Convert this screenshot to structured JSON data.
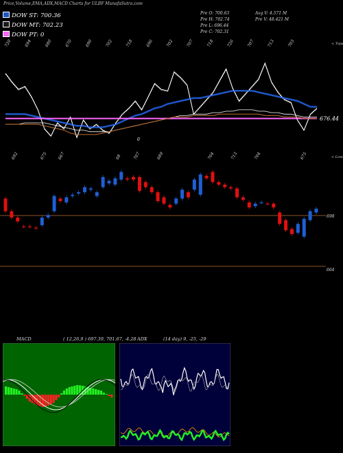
{
  "header": {
    "title": "Price,Volume,EMA,ADX,MACD Charts for ULBF MunafaSutra.com"
  },
  "legend": [
    {
      "label": "DOW ST: 700.36",
      "color": "#1e56c8"
    },
    {
      "label": "DOW MT: 702.23",
      "color": "#1a1a1a"
    },
    {
      "label": "DOW PT: 0",
      "color": "#ff66ff"
    }
  ],
  "ohlc": {
    "open": "Pre  O: 700.63",
    "high": "Pre  H: 702.74",
    "low": "Pre  L: 696.44",
    "close": "Pre  C: 702.31",
    "avg_volume": "Avg V: 4.571 M",
    "prev_volume": "Pre  V: 48.421 M"
  },
  "colors": {
    "up": "#1e5fd6",
    "down": "#e01010",
    "ema_short": "#1e56c8",
    "ema_pt": "#ff66ff",
    "ema_long": "#c07030",
    "grid": "#c07030",
    "macd_bg": "#006400",
    "adx_bg": "#00003a"
  },
  "chart_data": [
    {
      "type": "line",
      "title": "",
      "top_tick_labels": [
        "720",
        "694",
        "680",
        "670",
        "690",
        "702",
        "718",
        "696",
        "702",
        "707",
        "718",
        "726",
        "707",
        "713",
        "703"
      ],
      "bottom_tick_labels": [
        "692",
        "675",
        "667",
        "68",
        "707",
        "689",
        "704",
        "713",
        "704",
        "675"
      ],
      "price_label": "676.44",
      "annotation": "0",
      "corner_label_top": "< Tops",
      "corner_label_bottom": "< Lows",
      "series": [
        {
          "name": "",
          "values": [
            718,
            712,
            707,
            709,
            702,
            693,
            680,
            675,
            684,
            680,
            688,
            674,
            686,
            680,
            683,
            679,
            677,
            684,
            690,
            694,
            699,
            693,
            702,
            711,
            707,
            706,
            719,
            715,
            710,
            690,
            695,
            700,
            705,
            713,
            721,
            708,
            699,
            704,
            709,
            714,
            725,
            712,
            705,
            700,
            698,
            686,
            679,
            690,
            694
          ]
        },
        {
          "name": "DOW ST",
          "values": [
            690,
            690,
            690,
            690,
            689,
            688,
            687,
            686,
            685,
            684,
            683,
            682,
            682,
            681,
            681,
            681,
            682,
            683,
            685,
            687,
            689,
            690,
            692,
            694,
            695,
            697,
            698,
            699,
            700,
            701,
            701,
            702,
            703,
            704,
            705,
            706,
            706,
            706,
            706,
            705,
            704,
            703,
            702,
            701,
            700,
            699,
            697,
            695,
            695
          ]
        },
        {
          "name": "DOW MT",
          "values": [
            683,
            683,
            683,
            684,
            684,
            684,
            684,
            683,
            682,
            681,
            680,
            679,
            679,
            678,
            678,
            678,
            678,
            679,
            680,
            681,
            682,
            683,
            684,
            685,
            686,
            687,
            688,
            689,
            689,
            690,
            690,
            690,
            691,
            691,
            692,
            692,
            693,
            693,
            693,
            692,
            692,
            691,
            691,
            690,
            690,
            689,
            688,
            688,
            688
          ]
        },
        {
          "name": "DOW PT",
          "values": [
            687,
            687,
            687,
            687,
            687,
            687,
            687,
            687,
            687,
            687,
            687,
            687,
            687,
            687,
            687,
            687,
            687,
            687,
            687,
            687,
            687,
            687,
            687,
            687,
            687,
            687,
            687,
            687,
            687,
            687,
            687,
            687,
            687,
            687,
            687,
            687,
            687,
            687,
            687,
            687,
            687,
            687,
            687,
            687,
            687,
            687,
            687,
            687,
            687
          ]
        },
        {
          "name": "",
          "values": [
            683,
            683,
            683,
            683,
            683,
            683,
            682,
            681,
            680,
            679,
            677,
            676,
            676,
            676,
            676,
            677,
            678,
            679,
            680,
            681,
            682,
            683,
            684,
            685,
            686,
            687,
            688,
            688,
            688,
            689,
            689,
            689,
            689,
            690,
            690,
            690,
            690,
            690,
            690,
            690,
            689,
            689,
            689,
            688,
            688,
            688,
            687,
            687,
            687
          ]
        }
      ]
    },
    {
      "type": "bar",
      "title": "",
      "price_labels": [
        "698",
        "664"
      ],
      "candles": [
        {
          "o": 711,
          "c": 701,
          "dir": "down"
        },
        {
          "o": 701,
          "c": 696,
          "dir": "down"
        },
        {
          "o": 696,
          "c": 693,
          "dir": "down"
        },
        {
          "o": 689,
          "c": 689,
          "dir": "down"
        },
        {
          "o": 689,
          "c": 689,
          "dir": "down"
        },
        {
          "o": 688,
          "c": 688,
          "dir": "down"
        },
        {
          "o": 690,
          "c": 696,
          "dir": "up"
        },
        {
          "o": 696,
          "c": 698,
          "dir": "up"
        },
        {
          "o": 701,
          "c": 713,
          "dir": "up"
        },
        {
          "o": 709,
          "c": 711,
          "dir": "down"
        },
        {
          "o": 708,
          "c": 712,
          "dir": "up"
        },
        {
          "o": 713,
          "c": 714,
          "dir": "up"
        },
        {
          "o": 715,
          "c": 716,
          "dir": "up"
        },
        {
          "o": 716,
          "c": 720,
          "dir": "up"
        },
        {
          "o": 718,
          "c": 719,
          "dir": "up"
        },
        {
          "o": 713,
          "c": 716,
          "dir": "up"
        },
        {
          "o": 720,
          "c": 728,
          "dir": "up"
        },
        {
          "o": 723,
          "c": 725,
          "dir": "up"
        },
        {
          "o": 722,
          "c": 727,
          "dir": "up"
        },
        {
          "o": 726,
          "c": 732,
          "dir": "up"
        },
        {
          "o": 727,
          "c": 726,
          "dir": "down"
        },
        {
          "o": 728,
          "c": 726,
          "dir": "down"
        },
        {
          "o": 728,
          "c": 717,
          "dir": "down"
        },
        {
          "o": 724,
          "c": 720,
          "dir": "down"
        },
        {
          "o": 720,
          "c": 716,
          "dir": "down"
        },
        {
          "o": 716,
          "c": 709,
          "dir": "down"
        },
        {
          "o": 712,
          "c": 707,
          "dir": "down"
        },
        {
          "o": 706,
          "c": 704,
          "dir": "down"
        },
        {
          "o": 707,
          "c": 711,
          "dir": "up"
        },
        {
          "o": 711,
          "c": 718,
          "dir": "up"
        },
        {
          "o": 716,
          "c": 712,
          "dir": "down"
        },
        {
          "o": 718,
          "c": 726,
          "dir": "up"
        },
        {
          "o": 714,
          "c": 730,
          "dir": "up"
        },
        {
          "o": 729,
          "c": 727,
          "dir": "down"
        },
        {
          "o": 732,
          "c": 724,
          "dir": "down"
        },
        {
          "o": 724,
          "c": 722,
          "dir": "down"
        },
        {
          "o": 722,
          "c": 720,
          "dir": "down"
        },
        {
          "o": 720,
          "c": 719,
          "dir": "down"
        },
        {
          "o": 719,
          "c": 712,
          "dir": "down"
        },
        {
          "o": 712,
          "c": 710,
          "dir": "down"
        },
        {
          "o": 708,
          "c": 704,
          "dir": "down"
        },
        {
          "o": 705,
          "c": 707,
          "dir": "up"
        },
        {
          "o": 708,
          "c": 708,
          "dir": "up"
        },
        {
          "o": 707,
          "c": 707,
          "dir": "down"
        },
        {
          "o": 707,
          "c": 704,
          "dir": "down"
        },
        {
          "o": 700,
          "c": 691,
          "dir": "down"
        },
        {
          "o": 694,
          "c": 686,
          "dir": "down"
        },
        {
          "o": 687,
          "c": 683,
          "dir": "down"
        },
        {
          "o": 684,
          "c": 691,
          "dir": "up"
        },
        {
          "o": 681,
          "c": 695,
          "dir": "up"
        },
        {
          "o": 694,
          "c": 701,
          "dir": "up"
        },
        {
          "o": 700,
          "c": 703,
          "dir": "up"
        }
      ]
    },
    {
      "type": "bar",
      "title": "",
      "header": "MACD",
      "params": "( 12,26,9 ) 697.39,  701.67,  -4.28",
      "histogram": [
        6,
        5.5,
        5,
        4.5,
        4,
        3,
        1,
        -1,
        -3,
        -5,
        -6,
        -7,
        -8,
        -8.5,
        -9,
        -8.5,
        -8,
        -7,
        -6,
        -4,
        -2,
        1,
        3,
        4.5,
        5.5,
        6,
        6.5,
        7,
        6.8,
        6.5,
        6,
        5.5,
        5,
        4.5,
        4,
        3.5,
        3,
        1.5,
        0.5,
        -1,
        -2
      ]
    },
    {
      "type": "line",
      "title": "",
      "header": "ADX",
      "params": "(14 day) 9,  -25,  -29"
    }
  ]
}
